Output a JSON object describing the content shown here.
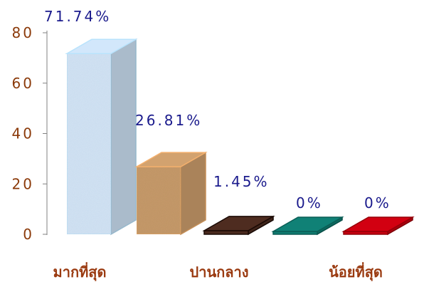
{
  "chart_data": {
    "type": "bar",
    "categories": [
      "มากที่สุด",
      "",
      "ปานกลาง",
      "",
      "น้อยที่สุด"
    ],
    "values": [
      71.74,
      26.81,
      1.45,
      0,
      0
    ],
    "data_labels": [
      "71.74%",
      "26.81%",
      "1.45%",
      "0%",
      "0%"
    ],
    "y_ticks": [
      "0",
      "20",
      "40",
      "60",
      "80"
    ],
    "ylim": [
      0,
      80
    ],
    "title": "",
    "xlabel": "",
    "ylabel": "",
    "grid": false,
    "style": "3d",
    "colors": [
      "#c8dcef",
      "#c89a6a",
      "#4a2a1e",
      "#0f7b70",
      "#c80010"
    ]
  }
}
